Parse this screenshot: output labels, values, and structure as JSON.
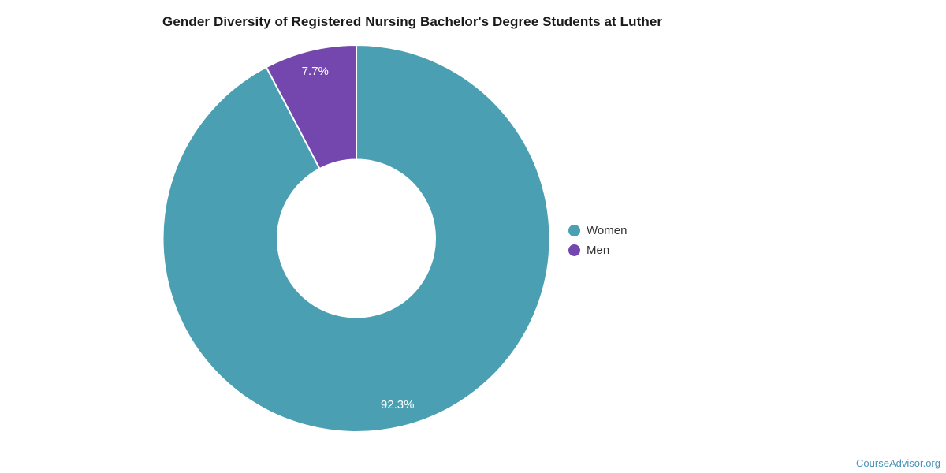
{
  "page": {
    "background": "#ffffff",
    "attribution": "CourseAdvisor.org",
    "attribution_color": "#4694b8"
  },
  "chart_data": {
    "type": "pie",
    "donut": true,
    "title": "Gender Diversity of Registered Nursing Bachelor's Degree Students at Luther",
    "categories": [
      "Women",
      "Men"
    ],
    "values": [
      92.3,
      7.7
    ],
    "slice_labels": [
      "92.3%",
      "7.7%"
    ],
    "colors": [
      "#4aa0b2",
      "#7347ad"
    ],
    "slice_label_color": "#ffffff",
    "start_angle_deg": 0,
    "direction": "clockwise",
    "legend_position": "right",
    "grid": false
  },
  "legend": {
    "items": [
      {
        "label": "Women",
        "color": "#4aa0b2"
      },
      {
        "label": "Men",
        "color": "#7347ad"
      }
    ]
  }
}
